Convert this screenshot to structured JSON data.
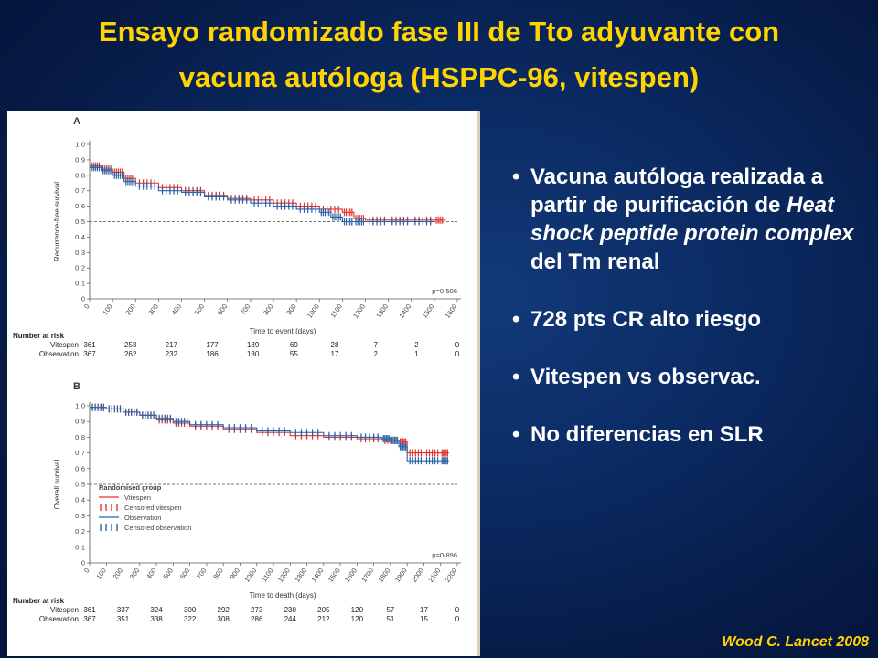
{
  "title": {
    "line1": "Ensayo randomizado fase III de Tto adyuvante con",
    "line2": "vacuna autóloga (HSPPC-96, vitespen)"
  },
  "bullets": {
    "b1_pre": "Vacuna autóloga realizada a partir de purificación de ",
    "b1_italic": "Heat shock peptide protein complex",
    "b1_post": " del Tm renal",
    "b2": "728 pts CR alto riesgo",
    "b3": "Vitespen vs observac.",
    "b4": "No diferencias en SLR"
  },
  "citation": "Wood C. Lancet 2008",
  "colors": {
    "title": "#ffd400",
    "vitespen": "#e8312b",
    "observation": "#2a62a8",
    "reference": "#777777"
  },
  "chart_data": [
    {
      "type": "line",
      "panel": "A",
      "ylabel": "Recurrence-free survival",
      "xlabel": "Time to event (days)",
      "xlim": [
        0,
        1600
      ],
      "ylim": [
        0,
        1.0
      ],
      "xticks": [
        0,
        100,
        200,
        300,
        400,
        500,
        600,
        700,
        800,
        900,
        1000,
        1100,
        1200,
        1300,
        1400,
        1500,
        1600
      ],
      "yticks": [
        "0",
        "0·1",
        "0·2",
        "0·3",
        "0·4",
        "0·5",
        "0·6",
        "0·7",
        "0·8",
        "0·9",
        "1·0"
      ],
      "reference_y": 0.5,
      "p_value": "p=0·506",
      "series": [
        {
          "name": "Vitespen",
          "x": [
            0,
            50,
            100,
            150,
            200,
            300,
            400,
            500,
            600,
            700,
            800,
            900,
            1000,
            1100,
            1150,
            1200,
            1300,
            1400,
            1500,
            1550
          ],
          "y": [
            0.86,
            0.84,
            0.82,
            0.78,
            0.75,
            0.72,
            0.7,
            0.67,
            0.65,
            0.64,
            0.62,
            0.6,
            0.58,
            0.56,
            0.52,
            0.51,
            0.51,
            0.51,
            0.51,
            0.51
          ]
        },
        {
          "name": "Observation",
          "x": [
            0,
            50,
            100,
            150,
            200,
            300,
            400,
            500,
            600,
            700,
            800,
            900,
            1000,
            1050,
            1100,
            1150,
            1200,
            1300,
            1400,
            1500
          ],
          "y": [
            0.85,
            0.83,
            0.8,
            0.76,
            0.73,
            0.7,
            0.69,
            0.66,
            0.64,
            0.62,
            0.6,
            0.58,
            0.56,
            0.53,
            0.5,
            0.5,
            0.5,
            0.5,
            0.5,
            0.5
          ]
        }
      ],
      "risk_table": {
        "header": "Number at risk",
        "rows": [
          {
            "label": "Vitespen",
            "values": [
              "361",
              "253",
              "217",
              "177",
              "139",
              "69",
              "28",
              "7",
              "2",
              "0"
            ]
          },
          {
            "label": "Observation",
            "values": [
              "367",
              "262",
              "232",
              "186",
              "130",
              "55",
              "17",
              "2",
              "1",
              "0"
            ]
          }
        ]
      }
    },
    {
      "type": "line",
      "panel": "B",
      "ylabel": "Overall survival",
      "xlabel": "Time to death (days)",
      "xlim": [
        0,
        2200
      ],
      "ylim": [
        0,
        1.0
      ],
      "xticks": [
        0,
        100,
        200,
        300,
        400,
        500,
        600,
        700,
        800,
        900,
        1000,
        1100,
        1200,
        1300,
        1400,
        1500,
        1600,
        1700,
        1800,
        1900,
        2000,
        2100,
        2200
      ],
      "yticks": [
        "0",
        "0·1",
        "0·2",
        "0·3",
        "0·4",
        "0·5",
        "0·6",
        "0·7",
        "0·8",
        "0·9",
        "1·0"
      ],
      "reference_y": 0.5,
      "p_value": "p=0·896",
      "legend": {
        "title": "Randomised group",
        "entries": [
          "Vitespen",
          "Censored vitespen",
          "Observation",
          "Censored observation"
        ]
      },
      "series": [
        {
          "name": "Vitespen",
          "x": [
            0,
            100,
            200,
            300,
            400,
            500,
            600,
            800,
            1000,
            1200,
            1400,
            1600,
            1750,
            1850,
            1900,
            2000,
            2100,
            2150
          ],
          "y": [
            0.99,
            0.98,
            0.96,
            0.94,
            0.91,
            0.89,
            0.87,
            0.85,
            0.83,
            0.81,
            0.8,
            0.79,
            0.78,
            0.77,
            0.7,
            0.7,
            0.7,
            0.7
          ]
        },
        {
          "name": "Observation",
          "x": [
            0,
            100,
            200,
            300,
            400,
            500,
            600,
            800,
            1000,
            1200,
            1400,
            1600,
            1750,
            1800,
            1850,
            1900,
            2000,
            2100,
            2150
          ],
          "y": [
            0.99,
            0.98,
            0.96,
            0.94,
            0.92,
            0.9,
            0.88,
            0.86,
            0.84,
            0.83,
            0.81,
            0.8,
            0.79,
            0.78,
            0.74,
            0.65,
            0.65,
            0.65,
            0.65
          ]
        }
      ],
      "risk_table": {
        "header": "Number at risk",
        "rows": [
          {
            "label": "Vitespen",
            "values": [
              "361",
              "337",
              "324",
              "300",
              "292",
              "273",
              "230",
              "205",
              "120",
              "57",
              "17",
              "0"
            ]
          },
          {
            "label": "Observation",
            "values": [
              "367",
              "351",
              "338",
              "322",
              "308",
              "286",
              "244",
              "212",
              "120",
              "51",
              "15",
              "0"
            ]
          }
        ]
      }
    }
  ]
}
